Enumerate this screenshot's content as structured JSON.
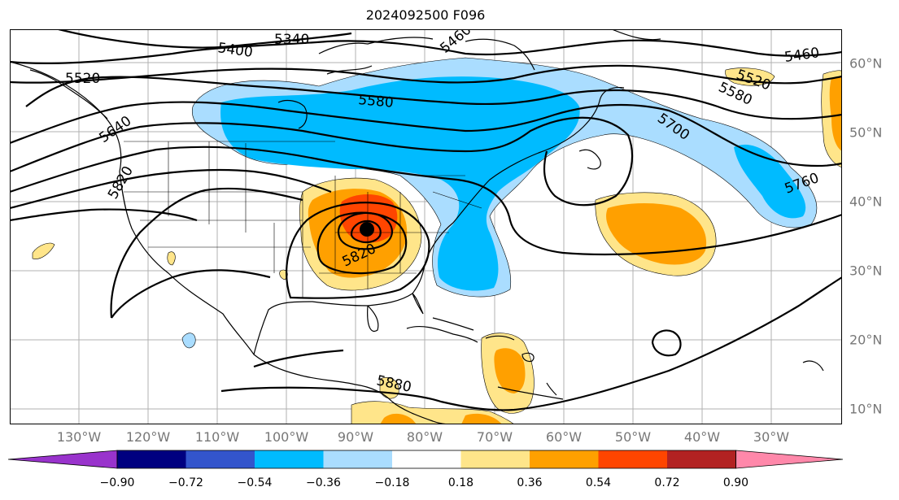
{
  "title": "2024092500 F096",
  "lon_labels": [
    "130°W",
    "120°W",
    "110°W",
    "100°W",
    "90°W",
    "80°W",
    "70°W",
    "60°W",
    "50°W",
    "40°W",
    "30°W"
  ],
  "lat_labels": [
    "60°N",
    "50°N",
    "40°N",
    "30°N",
    "20°N",
    "10°N"
  ],
  "contour_labels": [
    "5340",
    "5400",
    "5460",
    "5520",
    "5460",
    "5520",
    "5580",
    "5580",
    "5640",
    "5700",
    "5760",
    "5820",
    "5820",
    "5880"
  ],
  "colorbar": {
    "ticks": [
      "−0.90",
      "−0.72",
      "−0.54",
      "−0.36",
      "−0.18",
      "0.18",
      "0.36",
      "0.54",
      "0.72",
      "0.90"
    ],
    "colors": [
      "#9933cc",
      "#000080",
      "#3355cc",
      "#00bbff",
      "#aaddff",
      "#ffffff",
      "#ffe58a",
      "#ffa000",
      "#ff4500",
      "#b22222",
      "#ff88aa"
    ]
  },
  "center_marker": "low-center-dot"
}
